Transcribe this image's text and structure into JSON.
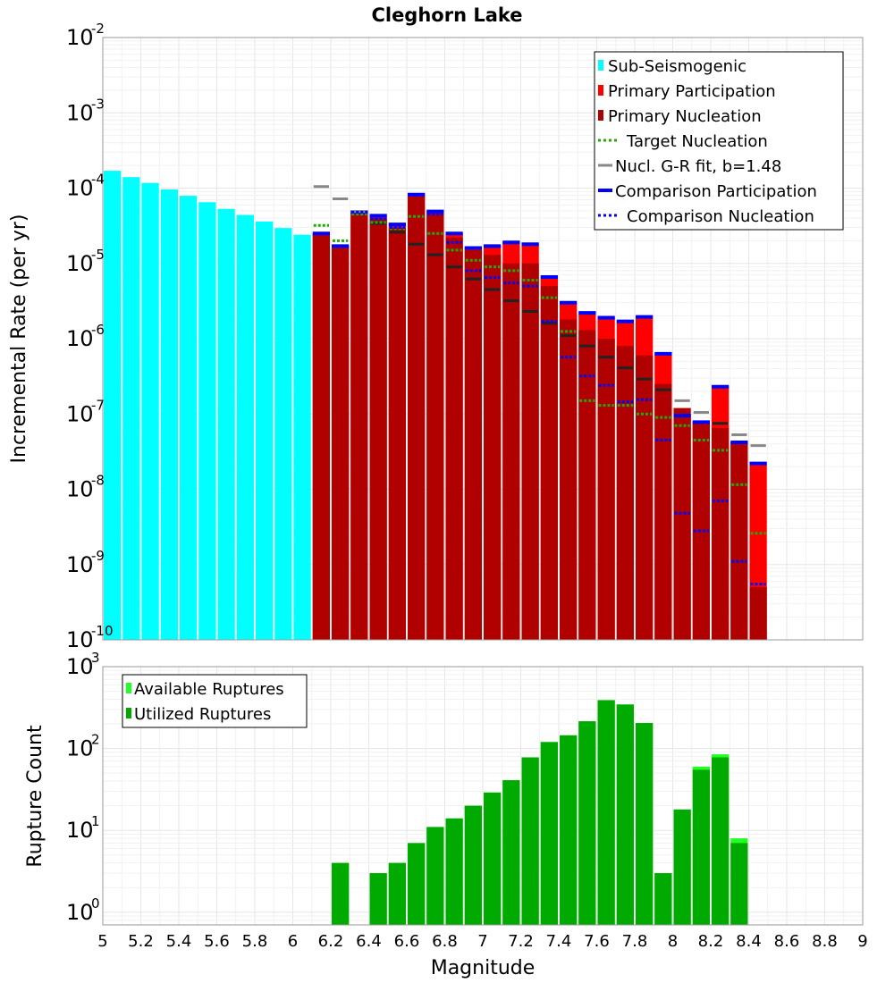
{
  "chart_data": [
    {
      "type": "bar",
      "title": "Cleghorn Lake",
      "xlabel": "",
      "ylabel": "Incremental Rate (per yr)",
      "y_scale": "log",
      "xlim": [
        5,
        9
      ],
      "ylim": [
        1e-10,
        0.01
      ],
      "bin_width": 0.1,
      "x_ticks": [
        "5",
        "5.2",
        "5.4",
        "5.6",
        "5.8",
        "6",
        "6.2",
        "6.4",
        "6.6",
        "6.8",
        "7",
        "7.2",
        "7.4",
        "7.6",
        "7.8",
        "8",
        "8.2",
        "8.4",
        "8.6",
        "8.8",
        "9"
      ],
      "y_ticks": [
        {
          "base": "10",
          "exp": "-10"
        },
        {
          "base": "10",
          "exp": "-9"
        },
        {
          "base": "10",
          "exp": "-8"
        },
        {
          "base": "10",
          "exp": "-7"
        },
        {
          "base": "10",
          "exp": "-6"
        },
        {
          "base": "10",
          "exp": "-5"
        },
        {
          "base": "10",
          "exp": "-4"
        },
        {
          "base": "10",
          "exp": "-3"
        },
        {
          "base": "10",
          "exp": "-2"
        }
      ],
      "grid": true,
      "legend_position": "top-right",
      "legend": [
        "Sub-Seismogenic",
        "Primary Participation",
        "Primary Nucleation",
        "Target Nucleation",
        "Nucl. G-R fit, b=1.48",
        "Comparison Participation",
        "Comparison Nucleation"
      ],
      "colors": {
        "sub_seismogenic": "#00ffff",
        "primary_participation": "#ff0000",
        "primary_nucleation": "#b00000",
        "target_nucleation": "#22aa00",
        "gr_fit_above": "#888888",
        "gr_fit_below": "#222222",
        "comparison": "#0000ff"
      },
      "series": [
        {
          "name": "Sub-Seismogenic",
          "x": [
            5.05,
            5.15,
            5.25,
            5.35,
            5.45,
            5.55,
            5.65,
            5.75,
            5.85,
            5.95,
            6.05
          ],
          "values": [
            0.00017,
            0.00014,
            0.000117,
            9.6e-05,
            7.9e-05,
            6.5e-05,
            5.3e-05,
            4.4e-05,
            3.6e-05,
            2.95e-05,
            2.4e-05
          ]
        },
        {
          "name": "Primary Participation",
          "x": [
            6.15,
            6.25,
            6.35,
            6.45,
            6.55,
            6.65,
            6.75,
            6.85,
            6.95,
            7.05,
            7.15,
            7.25,
            7.35,
            7.45,
            7.55,
            7.65,
            7.75,
            7.85,
            7.95,
            8.05,
            8.15,
            8.25,
            8.35,
            8.45
          ],
          "values": [
            2.5e-05,
            1.7e-05,
            4.8e-05,
            4.3e-05,
            3.3e-05,
            8.2e-05,
            4.9e-05,
            2.5e-05,
            1.6e-05,
            1.7e-05,
            1.9e-05,
            1.8e-05,
            6.6e-06,
            3e-06,
            2.2e-06,
            1.9e-06,
            1.7e-06,
            1.95e-06,
            6.3e-07,
            9.5e-08,
            7.8e-08,
            2.3e-07,
            4.2e-08,
            2.2e-08
          ]
        },
        {
          "name": "Primary Nucleation",
          "x": [
            6.15,
            6.25,
            6.35,
            6.45,
            6.55,
            6.65,
            6.75,
            6.85,
            6.95,
            7.05,
            7.15,
            7.25,
            7.35,
            7.45,
            7.55,
            7.65,
            7.75,
            7.85,
            7.95,
            8.05,
            8.15,
            8.25,
            8.35,
            8.45
          ],
          "values": [
            2.5e-05,
            1.7e-05,
            4.8e-05,
            4e-05,
            3e-05,
            8.2e-05,
            4.7e-05,
            2.2e-05,
            1.5e-05,
            1.3e-05,
            1e-05,
            1e-05,
            5e-06,
            1.8e-06,
            1.3e-06,
            1e-06,
            8e-07,
            6e-07,
            2.5e-07,
            1.2e-07,
            8e-08,
            6.5e-08,
            4.2e-08,
            5e-10
          ]
        },
        {
          "name": "Target Nucleation",
          "x": [
            6.15,
            6.25,
            6.35,
            6.45,
            6.55,
            6.65,
            6.75,
            6.85,
            6.95,
            7.05,
            7.15,
            7.25,
            7.35,
            7.45,
            7.55,
            7.65,
            7.75,
            7.85,
            7.95,
            8.05,
            8.15,
            8.25,
            8.35,
            8.45
          ],
          "values": [
            3.2e-05,
            2e-05,
            4.5e-05,
            3.5e-05,
            2.9e-05,
            4.2e-05,
            2.5e-05,
            1.5e-05,
            1.1e-05,
            9e-06,
            8e-06,
            6e-06,
            3.5e-06,
            1.25e-06,
            1.5e-07,
            1.3e-07,
            1.3e-07,
            1e-07,
            9e-08,
            7e-08,
            4.5e-08,
            3.3e-08,
            1.15e-08,
            2.6e-09
          ]
        },
        {
          "name": "Nucl. G-R fit, b=1.48",
          "x": [
            6.15,
            6.25,
            6.35,
            6.45,
            6.55,
            6.65,
            6.75,
            6.85,
            6.95,
            7.05,
            7.15,
            7.25,
            7.35,
            7.45,
            7.55,
            7.65,
            7.75,
            7.85,
            7.95,
            8.05,
            8.15,
            8.25,
            8.35,
            8.45
          ],
          "values": [
            0.000105,
            7.2e-05,
            4.9e-05,
            3.4e-05,
            2.6e-05,
            1.8e-05,
            1.3e-05,
            9e-06,
            6.2e-06,
            4.5e-06,
            3.2e-06,
            2.3e-06,
            1.6e-06,
            1.1e-06,
            8e-07,
            5.7e-07,
            4.1e-07,
            2.9e-07,
            2.1e-07,
            1.5e-07,
            1.05e-07,
            7.5e-08,
            5.3e-08,
            3.8e-08
          ]
        },
        {
          "name": "Comparison Participation",
          "x": [
            6.15,
            6.25,
            6.35,
            6.45,
            6.55,
            6.65,
            6.75,
            6.85,
            6.95,
            7.05,
            7.15,
            7.25,
            7.35,
            7.45,
            7.55,
            7.65,
            7.75,
            7.85,
            7.95,
            8.05,
            8.15,
            8.25,
            8.35,
            8.45
          ],
          "values": [
            2.5e-05,
            1.7e-05,
            4.8e-05,
            4.3e-05,
            3.3e-05,
            8.2e-05,
            4.9e-05,
            2.5e-05,
            1.6e-05,
            1.7e-05,
            1.9e-05,
            1.8e-05,
            6.6e-06,
            3e-06,
            2.2e-06,
            1.9e-06,
            1.7e-06,
            1.95e-06,
            6.3e-07,
            9.5e-08,
            7.8e-08,
            2.3e-07,
            4.2e-08,
            2.2e-08
          ]
        },
        {
          "name": "Comparison Nucleation",
          "x": [
            6.15,
            6.25,
            6.35,
            6.45,
            6.55,
            6.65,
            6.75,
            6.85,
            6.95,
            7.05,
            7.15,
            7.25,
            7.35,
            7.45,
            7.55,
            7.65,
            7.75,
            7.85,
            7.95,
            8.05,
            8.15,
            8.25,
            8.35,
            8.45
          ],
          "values": [
            2.5e-05,
            1.7e-05,
            4.8e-05,
            3.9e-05,
            3e-05,
            8.2e-05,
            4.5e-05,
            1.9e-05,
            8e-06,
            6.5e-06,
            5.5e-06,
            5e-06,
            1.7e-06,
            5.7e-07,
            3.2e-07,
            2.4e-07,
            1.45e-07,
            1.55e-07,
            4.5e-08,
            4.8e-09,
            2.8e-09,
            7e-09,
            1.1e-09,
            5.5e-10
          ]
        }
      ]
    },
    {
      "type": "bar",
      "title": "",
      "xlabel": "Magnitude",
      "ylabel": "Rupture Count",
      "y_scale": "log",
      "xlim": [
        5,
        9
      ],
      "ylim": [
        0.7,
        1000
      ],
      "bin_width": 0.1,
      "x_ticks": [
        "5",
        "5.2",
        "5.4",
        "5.6",
        "5.8",
        "6",
        "6.2",
        "6.4",
        "6.6",
        "6.8",
        "7",
        "7.2",
        "7.4",
        "7.6",
        "7.8",
        "8",
        "8.2",
        "8.4",
        "8.6",
        "8.8",
        "9"
      ],
      "y_ticks": [
        {
          "base": "10",
          "exp": "0"
        },
        {
          "base": "10",
          "exp": "1"
        },
        {
          "base": "10",
          "exp": "2"
        },
        {
          "base": "10",
          "exp": "3"
        }
      ],
      "grid": true,
      "legend_position": "top-left",
      "legend": [
        "Available Ruptures",
        "Utilized Ruptures"
      ],
      "colors": {
        "available": "#22ff22",
        "utilized": "#00aa00"
      },
      "series": [
        {
          "name": "Available Ruptures",
          "x": [
            6.25,
            6.45,
            6.55,
            6.65,
            6.75,
            6.85,
            6.95,
            7.05,
            7.15,
            7.25,
            7.35,
            7.45,
            7.55,
            7.65,
            7.75,
            7.85,
            7.95,
            8.05,
            8.15,
            8.25,
            8.35
          ],
          "values": [
            4,
            3,
            4,
            7,
            11,
            14,
            20,
            29,
            41,
            78,
            120,
            145,
            215,
            390,
            345,
            205,
            3,
            18,
            60,
            85,
            8
          ]
        },
        {
          "name": "Utilized Ruptures",
          "x": [
            6.25,
            6.45,
            6.55,
            6.65,
            6.75,
            6.85,
            6.95,
            7.05,
            7.15,
            7.25,
            7.35,
            7.45,
            7.55,
            7.65,
            7.75,
            7.85,
            7.95,
            8.05,
            8.15,
            8.25,
            8.35
          ],
          "values": [
            4,
            3,
            4,
            7,
            11,
            14,
            20,
            29,
            41,
            78,
            120,
            145,
            215,
            390,
            345,
            205,
            3,
            18,
            55,
            78,
            7
          ]
        }
      ]
    }
  ]
}
